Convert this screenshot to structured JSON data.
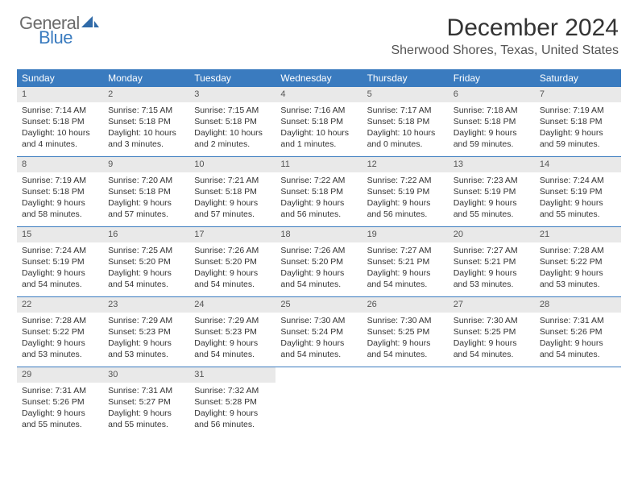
{
  "logo": {
    "text1": "General",
    "text2": "Blue",
    "sail_color": "#2f6aa8"
  },
  "title": "December 2024",
  "location": "Sherwood Shores, Texas, United States",
  "colors": {
    "header_bg": "#3a7bbf",
    "header_text": "#ffffff",
    "daynum_bg": "#e9e9e9",
    "border": "#3a7bbf",
    "body_bg": "#ffffff",
    "text": "#333333"
  },
  "day_names": [
    "Sunday",
    "Monday",
    "Tuesday",
    "Wednesday",
    "Thursday",
    "Friday",
    "Saturday"
  ],
  "weeks": [
    [
      {
        "n": "1",
        "sunrise": "7:14 AM",
        "sunset": "5:18 PM",
        "day_h": "10",
        "day_m": "4"
      },
      {
        "n": "2",
        "sunrise": "7:15 AM",
        "sunset": "5:18 PM",
        "day_h": "10",
        "day_m": "3"
      },
      {
        "n": "3",
        "sunrise": "7:15 AM",
        "sunset": "5:18 PM",
        "day_h": "10",
        "day_m": "2"
      },
      {
        "n": "4",
        "sunrise": "7:16 AM",
        "sunset": "5:18 PM",
        "day_h": "10",
        "day_m": "1"
      },
      {
        "n": "5",
        "sunrise": "7:17 AM",
        "sunset": "5:18 PM",
        "day_h": "10",
        "day_m": "0"
      },
      {
        "n": "6",
        "sunrise": "7:18 AM",
        "sunset": "5:18 PM",
        "day_h": "9",
        "day_m": "59"
      },
      {
        "n": "7",
        "sunrise": "7:19 AM",
        "sunset": "5:18 PM",
        "day_h": "9",
        "day_m": "59"
      }
    ],
    [
      {
        "n": "8",
        "sunrise": "7:19 AM",
        "sunset": "5:18 PM",
        "day_h": "9",
        "day_m": "58"
      },
      {
        "n": "9",
        "sunrise": "7:20 AM",
        "sunset": "5:18 PM",
        "day_h": "9",
        "day_m": "57"
      },
      {
        "n": "10",
        "sunrise": "7:21 AM",
        "sunset": "5:18 PM",
        "day_h": "9",
        "day_m": "57"
      },
      {
        "n": "11",
        "sunrise": "7:22 AM",
        "sunset": "5:18 PM",
        "day_h": "9",
        "day_m": "56"
      },
      {
        "n": "12",
        "sunrise": "7:22 AM",
        "sunset": "5:19 PM",
        "day_h": "9",
        "day_m": "56"
      },
      {
        "n": "13",
        "sunrise": "7:23 AM",
        "sunset": "5:19 PM",
        "day_h": "9",
        "day_m": "55"
      },
      {
        "n": "14",
        "sunrise": "7:24 AM",
        "sunset": "5:19 PM",
        "day_h": "9",
        "day_m": "55"
      }
    ],
    [
      {
        "n": "15",
        "sunrise": "7:24 AM",
        "sunset": "5:19 PM",
        "day_h": "9",
        "day_m": "54"
      },
      {
        "n": "16",
        "sunrise": "7:25 AM",
        "sunset": "5:20 PM",
        "day_h": "9",
        "day_m": "54"
      },
      {
        "n": "17",
        "sunrise": "7:26 AM",
        "sunset": "5:20 PM",
        "day_h": "9",
        "day_m": "54"
      },
      {
        "n": "18",
        "sunrise": "7:26 AM",
        "sunset": "5:20 PM",
        "day_h": "9",
        "day_m": "54"
      },
      {
        "n": "19",
        "sunrise": "7:27 AM",
        "sunset": "5:21 PM",
        "day_h": "9",
        "day_m": "54"
      },
      {
        "n": "20",
        "sunrise": "7:27 AM",
        "sunset": "5:21 PM",
        "day_h": "9",
        "day_m": "53"
      },
      {
        "n": "21",
        "sunrise": "7:28 AM",
        "sunset": "5:22 PM",
        "day_h": "9",
        "day_m": "53"
      }
    ],
    [
      {
        "n": "22",
        "sunrise": "7:28 AM",
        "sunset": "5:22 PM",
        "day_h": "9",
        "day_m": "53"
      },
      {
        "n": "23",
        "sunrise": "7:29 AM",
        "sunset": "5:23 PM",
        "day_h": "9",
        "day_m": "53"
      },
      {
        "n": "24",
        "sunrise": "7:29 AM",
        "sunset": "5:23 PM",
        "day_h": "9",
        "day_m": "54"
      },
      {
        "n": "25",
        "sunrise": "7:30 AM",
        "sunset": "5:24 PM",
        "day_h": "9",
        "day_m": "54"
      },
      {
        "n": "26",
        "sunrise": "7:30 AM",
        "sunset": "5:25 PM",
        "day_h": "9",
        "day_m": "54"
      },
      {
        "n": "27",
        "sunrise": "7:30 AM",
        "sunset": "5:25 PM",
        "day_h": "9",
        "day_m": "54"
      },
      {
        "n": "28",
        "sunrise": "7:31 AM",
        "sunset": "5:26 PM",
        "day_h": "9",
        "day_m": "54"
      }
    ],
    [
      {
        "n": "29",
        "sunrise": "7:31 AM",
        "sunset": "5:26 PM",
        "day_h": "9",
        "day_m": "55"
      },
      {
        "n": "30",
        "sunrise": "7:31 AM",
        "sunset": "5:27 PM",
        "day_h": "9",
        "day_m": "55"
      },
      {
        "n": "31",
        "sunrise": "7:32 AM",
        "sunset": "5:28 PM",
        "day_h": "9",
        "day_m": "56"
      },
      null,
      null,
      null,
      null
    ]
  ],
  "labels": {
    "sunrise": "Sunrise:",
    "sunset": "Sunset:",
    "daylight": "Daylight:",
    "hours": "hours",
    "and": "and",
    "minutes": "minutes."
  }
}
